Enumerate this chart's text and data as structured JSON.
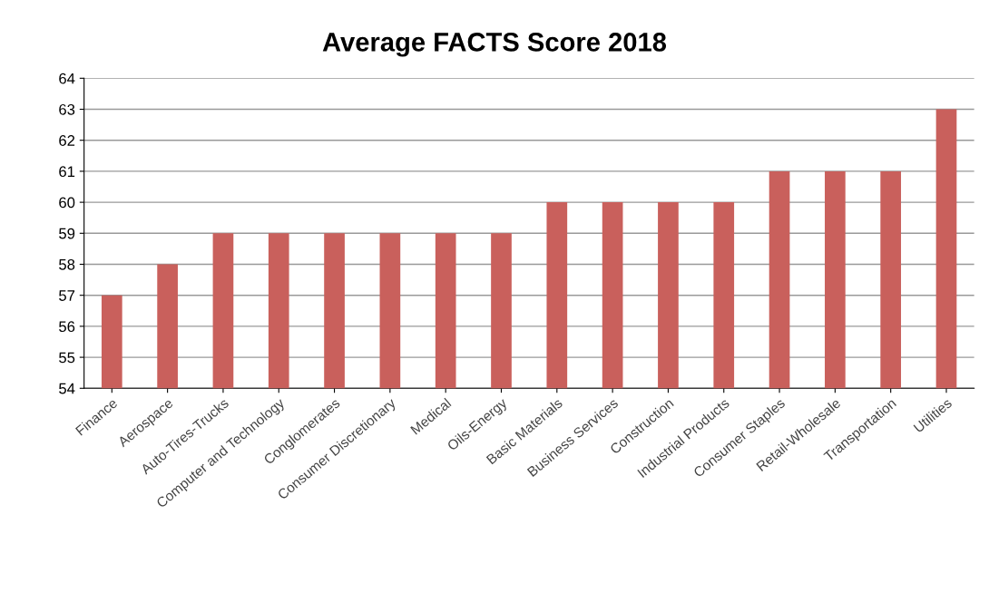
{
  "chart_data": {
    "type": "bar",
    "title": "Average FACTS Score 2018",
    "categories": [
      "Finance",
      "Aerospace",
      "Auto-Tires-Trucks",
      "Computer and Technology",
      "Conglomerates",
      "Consumer Discretionary",
      "Medical",
      "Oils-Energy",
      "Basic Materials",
      "Business Services",
      "Construction",
      "Industrial Products",
      "Consumer Staples",
      "Retail-Wholesale",
      "Transportation",
      "Utilities"
    ],
    "values": [
      57,
      58,
      59,
      59,
      59,
      59,
      59,
      59,
      60,
      60,
      60,
      60,
      61,
      61,
      61,
      63
    ],
    "color": "#c9605c",
    "ylim": [
      54,
      64
    ],
    "yticks": [
      54,
      55,
      56,
      57,
      58,
      59,
      60,
      61,
      62,
      63,
      64
    ],
    "grid": "y"
  }
}
